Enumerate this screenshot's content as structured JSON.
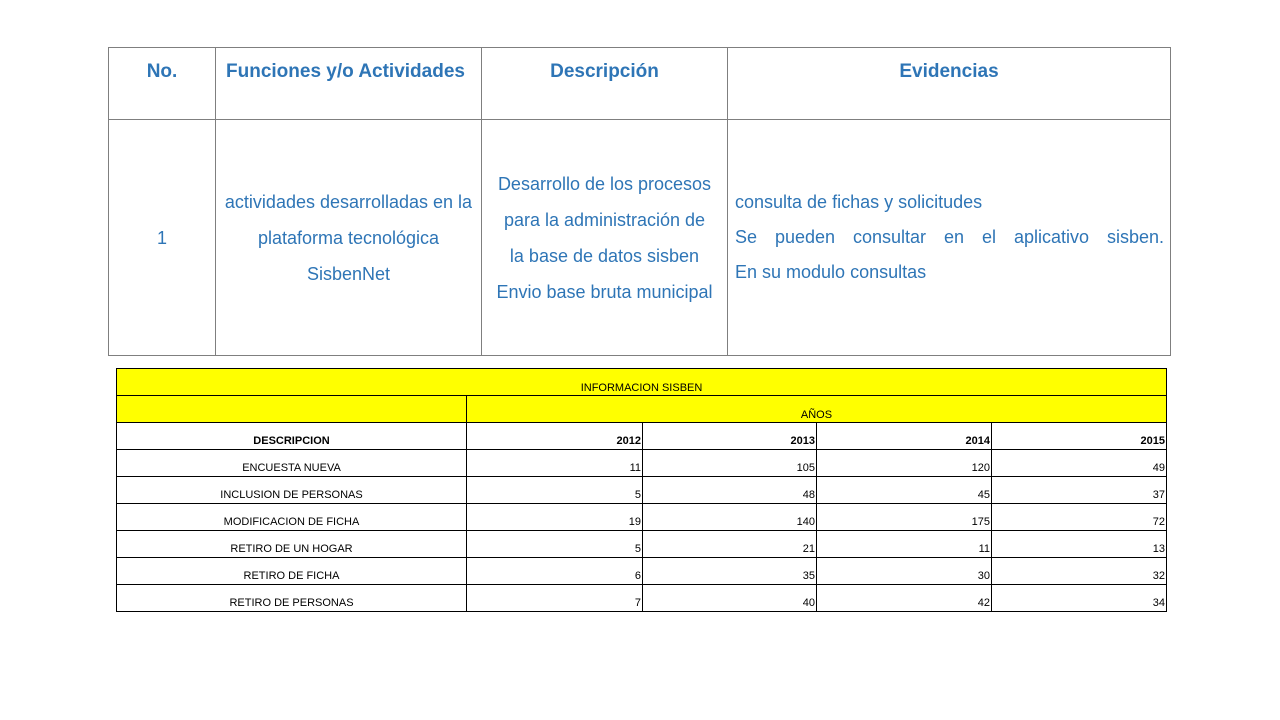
{
  "activities_table": {
    "headers": [
      "No.",
      "Funciones y/o Actividades",
      "Descripción",
      "Evidencias"
    ],
    "rows": [
      {
        "no": "1",
        "function": "actividades desarrolladas en la plataforma tecnológica SisbenNet",
        "description": "Desarrollo de los procesos para la administración de la base de datos sisben Envio base bruta municipal",
        "evidence_line1": "consulta de fichas y solicitudes",
        "evidence_line2": "Se pueden consultar en el aplicativo sisben.",
        "evidence_line3": "En su modulo consultas"
      }
    ]
  },
  "sisben_table": {
    "title": "INFORMACION SISBEN",
    "years_label": "AÑOS",
    "description_header": "DESCRIPCION",
    "years": [
      "2012",
      "2013",
      "2014",
      "2015"
    ],
    "rows": [
      {
        "label": "ENCUESTA NUEVA",
        "values": [
          "11",
          "105",
          "120",
          "49"
        ]
      },
      {
        "label": "INCLUSION DE PERSONAS",
        "values": [
          "5",
          "48",
          "45",
          "37"
        ]
      },
      {
        "label": "MODIFICACION DE FICHA",
        "values": [
          "19",
          "140",
          "175",
          "72"
        ]
      },
      {
        "label": "RETIRO DE UN HOGAR",
        "values": [
          "5",
          "21",
          "11",
          "13"
        ]
      },
      {
        "label": "RETIRO DE FICHA",
        "values": [
          "6",
          "35",
          "30",
          "32"
        ]
      },
      {
        "label": "RETIRO DE PERSONAS",
        "values": [
          "7",
          "40",
          "42",
          "34"
        ]
      }
    ]
  },
  "colors": {
    "header_text": "#2e75b6",
    "highlight": "#ffff00"
  }
}
